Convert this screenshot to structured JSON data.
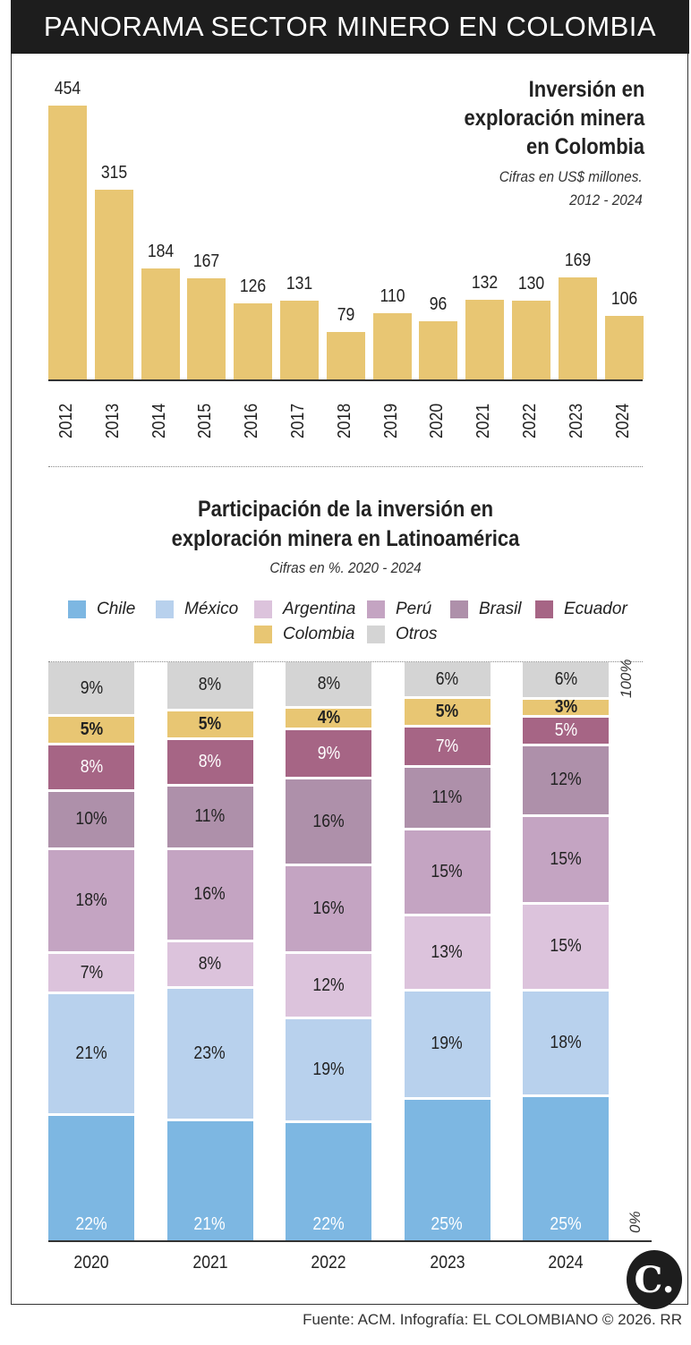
{
  "header": {
    "title": "PANORAMA SECTOR MINERO EN COLOMBIA"
  },
  "chart_data": [
    {
      "type": "bar",
      "title": "Inversión en exploración minera en Colombia",
      "title_lines": [
        "Inversión en",
        "exploración minera",
        "en Colombia"
      ],
      "subtitle_lines": [
        "Cifras en US$ millones.",
        "2012 - 2024"
      ],
      "categories": [
        "2012",
        "2013",
        "2014",
        "2015",
        "2016",
        "2017",
        "2018",
        "2019",
        "2020",
        "2021",
        "2022",
        "2023",
        "2024"
      ],
      "values": [
        454,
        315,
        184,
        167,
        126,
        131,
        79,
        110,
        96,
        132,
        130,
        169,
        106
      ],
      "color": "#e8c673",
      "grid": false
    },
    {
      "type": "bar",
      "stacked": true,
      "title_lines": [
        "Participación de la inversión en",
        "exploración minera en Latinoamérica"
      ],
      "subtitle": "Cifras en %. 2020 - 2024",
      "categories": [
        "2020",
        "2021",
        "2022",
        "2023",
        "2024"
      ],
      "axis_labels": {
        "top": "100%",
        "bottom": "0%"
      },
      "legend_placement": "top",
      "series": [
        {
          "name": "Chile",
          "color": "#7db7e2",
          "values": [
            22,
            21,
            22,
            25,
            25
          ]
        },
        {
          "name": "México",
          "color": "#b8d1ed",
          "values": [
            21,
            23,
            19,
            19,
            18
          ]
        },
        {
          "name": "Argentina",
          "color": "#dcc3dc",
          "values": [
            7,
            8,
            12,
            13,
            15
          ]
        },
        {
          "name": "Perú",
          "color": "#c4a4c2",
          "values": [
            18,
            16,
            16,
            15,
            15
          ]
        },
        {
          "name": "Brasil",
          "color": "#ae90aa",
          "values": [
            10,
            11,
            16,
            11,
            12
          ]
        },
        {
          "name": "Ecuador",
          "color": "#a66585",
          "values": [
            8,
            8,
            9,
            7,
            5
          ]
        },
        {
          "name": "Colombia",
          "color": "#e8c673",
          "values": [
            5,
            5,
            4,
            5,
            3
          ]
        },
        {
          "name": "Otros",
          "color": "#d4d4d4",
          "values": [
            9,
            8,
            8,
            6,
            6
          ]
        }
      ]
    }
  ],
  "footer": {
    "source": "Fuente: ACM. Infografía: EL COLOMBIANO © 2026. RR"
  },
  "logo": {
    "text": "C."
  }
}
